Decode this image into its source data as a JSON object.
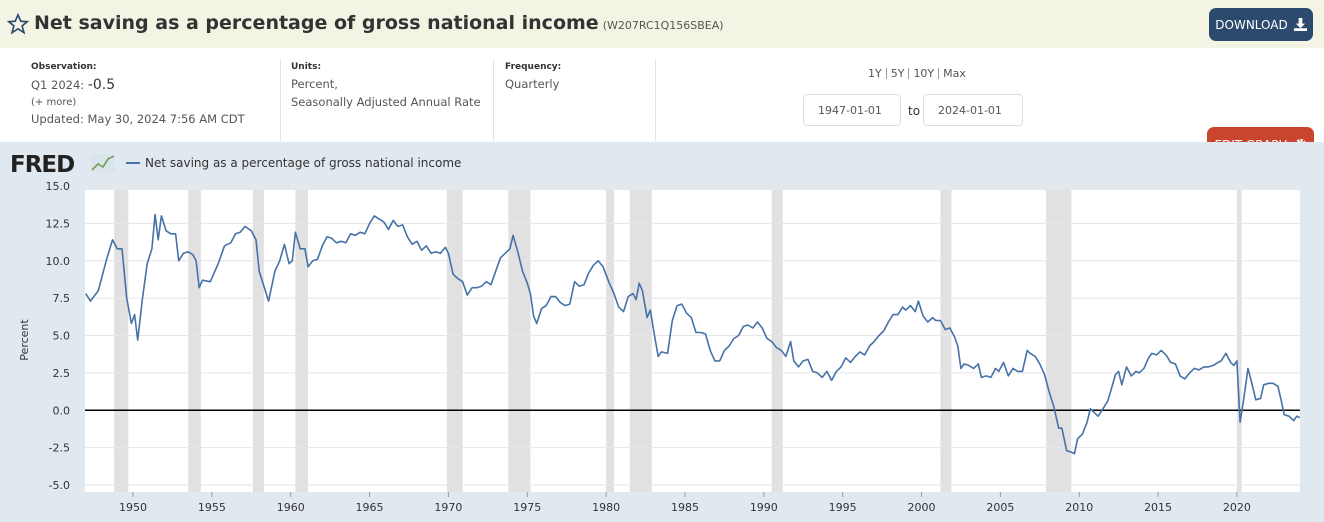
{
  "header": {
    "title": "Net saving as a percentage of gross national income",
    "series_id": "(W207RC1Q156SBEA)",
    "download": "DOWNLOAD"
  },
  "info": {
    "observation_label": "Observation:",
    "observation_period": "Q1 2024:",
    "observation_value": "-0.5",
    "more": "(+ more)",
    "updated": "Updated: May 30, 2024 7:56 AM CDT",
    "units_label": "Units:",
    "units": "Percent,",
    "units_detail": "Seasonally Adjusted Annual Rate",
    "frequency_label": "Frequency:",
    "frequency": "Quarterly",
    "ranges": [
      "1Y",
      "5Y",
      "10Y",
      "Max"
    ],
    "date_from": "1947-01-01",
    "to": "to",
    "date_to": "2024-01-01",
    "edit": "EDIT GRAPH"
  },
  "logo": "FRED",
  "chart_data": {
    "type": "line",
    "y_label": "Percent",
    "xlim": [
      1947,
      2024
    ],
    "xticks": [
      1950,
      1955,
      1960,
      1965,
      1970,
      1975,
      1980,
      1985,
      1990,
      1995,
      2000,
      2005,
      2010,
      2015,
      2020
    ],
    "ylim": [
      -5,
      15
    ],
    "yticks": [
      {
        "value": -5,
        "label": "-5.0"
      },
      -2.5,
      {
        "value": 0,
        "label": "0.0"
      },
      2.5,
      {
        "value": 5,
        "label": "5.0"
      },
      7.5,
      {
        "value": 10,
        "label": "10.0"
      },
      12.5,
      {
        "value": 15,
        "label": "15.0"
      }
    ],
    "grid": true,
    "baseline": 0,
    "recessions": [
      [
        1948.8,
        1949.7
      ],
      [
        1953.5,
        1954.3
      ],
      [
        1957.6,
        1958.3
      ],
      [
        1960.3,
        1961.1
      ],
      [
        1969.9,
        1970.9
      ],
      [
        1973.8,
        1975.2
      ],
      [
        1980.0,
        1980.5
      ],
      [
        1981.5,
        1982.9
      ],
      [
        1990.5,
        1991.2
      ],
      [
        2001.2,
        2001.9
      ],
      [
        2007.9,
        2009.5
      ],
      [
        2020.0,
        2020.3
      ]
    ],
    "x": [
      1947.0,
      1947.3,
      1947.8,
      1948.3,
      1948.7,
      1949.0,
      1949.3,
      1949.6,
      1949.9,
      1950.1,
      1950.3,
      1950.6,
      1950.9,
      1951.2,
      1951.4,
      1951.6,
      1951.8,
      1952.1,
      1952.4,
      1952.7,
      1952.9,
      1953.2,
      1953.5,
      1953.8,
      1954.0,
      1954.2,
      1954.4,
      1954.9,
      1955.4,
      1955.8,
      1956.2,
      1956.5,
      1956.8,
      1957.1,
      1957.5,
      1957.8,
      1958.0,
      1958.3,
      1958.6,
      1959.0,
      1959.3,
      1959.6,
      1959.9,
      1960.1,
      1960.3,
      1960.6,
      1960.9,
      1961.1,
      1961.4,
      1961.7,
      1962.0,
      1962.3,
      1962.6,
      1962.9,
      1963.2,
      1963.5,
      1963.8,
      1964.1,
      1964.4,
      1964.7,
      1965.0,
      1965.3,
      1965.6,
      1965.9,
      1966.2,
      1966.5,
      1966.8,
      1967.1,
      1967.4,
      1967.7,
      1968.0,
      1968.3,
      1968.6,
      1968.9,
      1969.2,
      1969.5,
      1969.8,
      1970.0,
      1970.3,
      1970.6,
      1970.9,
      1971.2,
      1971.5,
      1971.8,
      1972.1,
      1972.4,
      1972.7,
      1973.0,
      1973.3,
      1973.6,
      1973.9,
      1974.1,
      1974.4,
      1974.7,
      1975.0,
      1975.2,
      1975.4,
      1975.6,
      1975.9,
      1976.2,
      1976.5,
      1976.8,
      1977.1,
      1977.4,
      1977.7,
      1978.0,
      1978.3,
      1978.6,
      1978.9,
      1979.2,
      1979.5,
      1979.8,
      1980.2,
      1980.5,
      1980.8,
      1981.1,
      1981.4,
      1981.7,
      1981.9,
      1982.1,
      1982.3,
      1982.6,
      1982.8,
      1983.1,
      1983.3,
      1983.5,
      1983.9,
      1984.2,
      1984.5,
      1984.8,
      1985.1,
      1985.4,
      1985.7,
      1986.0,
      1986.3,
      1986.6,
      1986.9,
      1987.2,
      1987.5,
      1987.8,
      1988.1,
      1988.4,
      1988.7,
      1989.0,
      1989.3,
      1989.6,
      1989.9,
      1990.2,
      1990.5,
      1990.8,
      1991.1,
      1991.4,
      1991.7,
      1991.9,
      1992.2,
      1992.5,
      1992.8,
      1993.1,
      1993.4,
      1993.7,
      1994.0,
      1994.3,
      1994.6,
      1994.9,
      1995.2,
      1995.5,
      1995.8,
      1996.1,
      1996.4,
      1996.7,
      1997.0,
      1997.3,
      1997.6,
      1997.9,
      1998.2,
      1998.5,
      1998.8,
      1999.0,
      1999.3,
      1999.6,
      1999.8,
      2000.1,
      2000.4,
      2000.7,
      2000.9,
      2001.2,
      2001.5,
      2001.8,
      2002.1,
      2002.3,
      2002.5,
      2002.7,
      2003.0,
      2003.3,
      2003.6,
      2003.8,
      2004.1,
      2004.4,
      2004.7,
      2004.9,
      2005.2,
      2005.5,
      2005.8,
      2006.1,
      2006.4,
      2006.7,
      2006.9,
      2007.2,
      2007.5,
      2007.8,
      2008.1,
      2008.4,
      2008.7,
      2008.9,
      2009.2,
      2009.5,
      2009.7,
      2009.9,
      2010.2,
      2010.5,
      2010.7,
      2010.9,
      2011.2,
      2011.5,
      2011.8,
      2012.0,
      2012.3,
      2012.5,
      2012.7,
      2013.0,
      2013.3,
      2013.6,
      2013.8,
      2014.1,
      2014.4,
      2014.6,
      2014.9,
      2015.2,
      2015.5,
      2015.8,
      2016.1,
      2016.4,
      2016.7,
      2017.0,
      2017.3,
      2017.6,
      2017.9,
      2018.2,
      2018.5,
      2018.8,
      2019.0,
      2019.3,
      2019.6,
      2019.8,
      2020.0,
      2020.2,
      2020.4,
      2020.7,
      2020.9,
      2021.2,
      2021.5,
      2021.7,
      2022.0,
      2022.3,
      2022.6,
      2022.8,
      2023.0,
      2023.3,
      2023.6,
      2023.8,
      2024.0
    ],
    "series": [
      {
        "name": "Net saving as a percentage of gross national income",
        "color": "#4572a7",
        "values": [
          7.8,
          7.3,
          8.0,
          10.0,
          11.4,
          10.8,
          10.8,
          7.5,
          5.8,
          6.4,
          4.7,
          7.5,
          9.8,
          10.8,
          13.1,
          11.4,
          13.0,
          12.0,
          11.8,
          11.8,
          10.0,
          10.5,
          10.6,
          10.4,
          10.0,
          8.2,
          8.7,
          8.6,
          9.8,
          11.0,
          11.2,
          11.8,
          11.9,
          12.3,
          12.0,
          11.4,
          9.3,
          8.3,
          7.3,
          9.3,
          10.0,
          11.1,
          9.8,
          10.0,
          11.9,
          10.8,
          10.8,
          9.6,
          10.0,
          10.1,
          11.0,
          11.6,
          11.5,
          11.2,
          11.3,
          11.2,
          11.8,
          11.7,
          11.9,
          11.8,
          12.5,
          13.0,
          12.8,
          12.6,
          12.1,
          12.7,
          12.3,
          12.4,
          11.6,
          11.1,
          11.3,
          10.7,
          11.0,
          10.5,
          10.6,
          10.5,
          10.9,
          10.5,
          9.1,
          8.8,
          8.6,
          7.7,
          8.2,
          8.2,
          8.3,
          8.6,
          8.4,
          9.3,
          10.2,
          10.5,
          10.8,
          11.7,
          10.6,
          9.3,
          8.5,
          7.8,
          6.3,
          5.8,
          6.8,
          7.0,
          7.6,
          7.6,
          7.2,
          7.0,
          7.1,
          8.6,
          8.3,
          8.4,
          9.2,
          9.7,
          10.0,
          9.6,
          8.5,
          7.8,
          6.9,
          6.6,
          7.6,
          7.8,
          7.4,
          8.5,
          8.0,
          6.2,
          6.7,
          4.8,
          3.6,
          3.9,
          3.8,
          6.0,
          7.0,
          7.1,
          6.5,
          6.2,
          5.2,
          5.2,
          5.1,
          4.0,
          3.3,
          3.3,
          4.0,
          4.3,
          4.8,
          5.0,
          5.6,
          5.7,
          5.5,
          5.9,
          5.5,
          4.8,
          4.6,
          4.2,
          4.0,
          3.6,
          4.6,
          3.3,
          2.9,
          3.3,
          3.4,
          2.6,
          2.5,
          2.2,
          2.6,
          2.0,
          2.6,
          2.9,
          3.5,
          3.2,
          3.6,
          3.9,
          3.7,
          4.3,
          4.6,
          5.0,
          5.3,
          5.9,
          6.4,
          6.4,
          6.9,
          6.7,
          7.0,
          6.6,
          7.3,
          6.3,
          5.9,
          6.2,
          6.0,
          6.0,
          5.4,
          5.5,
          4.9,
          4.3,
          2.8,
          3.1,
          3.0,
          2.8,
          3.1,
          2.2,
          2.3,
          2.2,
          2.8,
          2.6,
          3.2,
          2.3,
          2.8,
          2.6,
          2.6,
          4.0,
          3.8,
          3.6,
          3.1,
          2.4,
          1.2,
          0.2,
          -1.2,
          -1.2,
          -2.7,
          -2.8,
          -2.9,
          -1.9,
          -1.6,
          -0.8,
          0.1,
          -0.1,
          -0.4,
          0.1,
          0.6,
          1.3,
          2.4,
          2.6,
          1.7,
          2.9,
          2.3,
          2.6,
          2.5,
          2.8,
          3.5,
          3.8,
          3.7,
          4.0,
          3.7,
          3.2,
          3.1,
          2.3,
          2.1,
          2.5,
          2.8,
          2.7,
          2.9,
          2.9,
          3.0,
          3.2,
          3.3,
          3.8,
          3.2,
          3.0,
          3.3,
          -0.8,
          0.5,
          2.8,
          2.0,
          0.7,
          0.8,
          1.7,
          1.8,
          1.8,
          1.6,
          0.7,
          -0.3,
          -0.4,
          -0.7,
          -0.4,
          -0.5
        ]
      }
    ]
  }
}
